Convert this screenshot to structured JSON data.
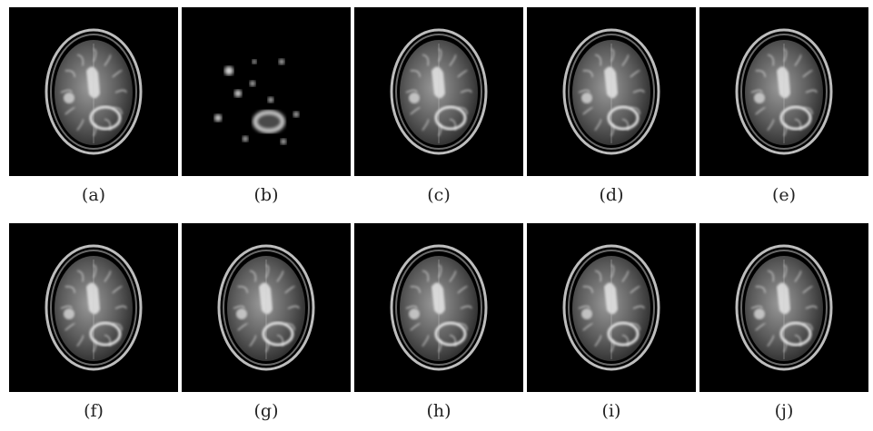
{
  "figure": {
    "panels": [
      {
        "label": "(a)",
        "variant": "brain"
      },
      {
        "label": "(b)",
        "variant": "blobs"
      },
      {
        "label": "(c)",
        "variant": "brain"
      },
      {
        "label": "(d)",
        "variant": "brain"
      },
      {
        "label": "(e)",
        "variant": "brain"
      },
      {
        "label": "(f)",
        "variant": "brain"
      },
      {
        "label": "(g)",
        "variant": "brain"
      },
      {
        "label": "(h)",
        "variant": "brain"
      },
      {
        "label": "(i)",
        "variant": "brain"
      },
      {
        "label": "(j)",
        "variant": "brain"
      }
    ]
  }
}
